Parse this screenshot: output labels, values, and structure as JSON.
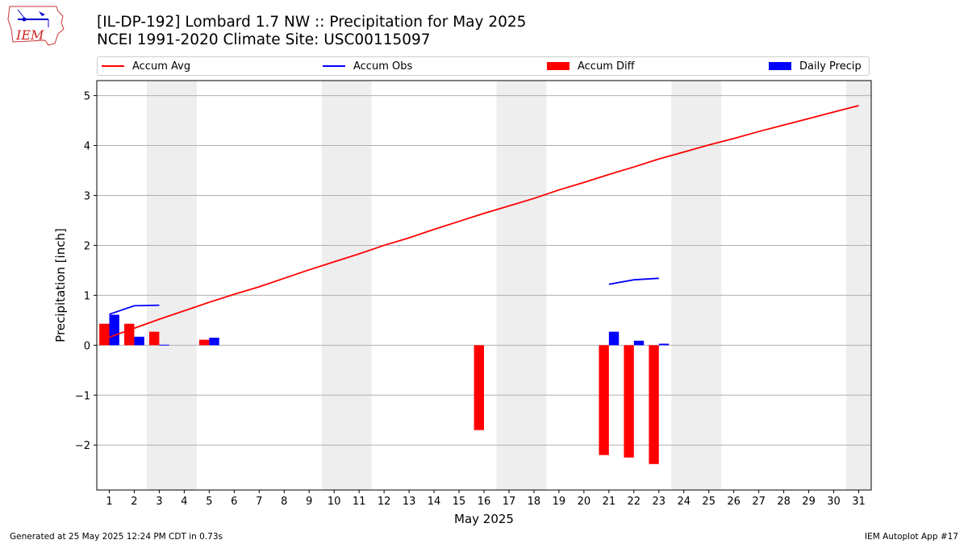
{
  "header": {
    "title_line1": "[IL-DP-192] Lombard 1.7 NW :: Precipitation for May 2025",
    "title_line2": "NCEI 1991-2020 Climate Site: USC00115097",
    "logo_text": "IEM"
  },
  "legend": {
    "items": [
      {
        "label": "Accum Avg",
        "kind": "line",
        "color": "#ff0000"
      },
      {
        "label": "Accum Obs",
        "kind": "line",
        "color": "#0000ff"
      },
      {
        "label": "Accum Diff",
        "kind": "bar",
        "color": "#ff0000"
      },
      {
        "label": "Daily Precip",
        "kind": "bar",
        "color": "#0000ff"
      }
    ]
  },
  "chart_data": {
    "type": "bar",
    "xlabel": "May 2025",
    "ylabel": "Precipitation [inch]",
    "xlim": [
      0.5,
      31.5
    ],
    "ylim": [
      -2.9,
      5.3
    ],
    "yticks": [
      -2,
      -1,
      0,
      1,
      2,
      3,
      4,
      5
    ],
    "ytick_labels": [
      "−2",
      "−1",
      "0",
      "1",
      "2",
      "3",
      "4",
      "5"
    ],
    "xticks": [
      1,
      2,
      3,
      4,
      5,
      6,
      7,
      8,
      9,
      10,
      11,
      12,
      13,
      14,
      15,
      16,
      17,
      18,
      19,
      20,
      21,
      22,
      23,
      24,
      25,
      26,
      27,
      28,
      29,
      30,
      31
    ],
    "grid": "y",
    "weekend_shading": [
      [
        2.5,
        4.5
      ],
      [
        9.5,
        11.5
      ],
      [
        16.5,
        18.5
      ],
      [
        23.5,
        25.5
      ],
      [
        30.5,
        31.5
      ]
    ],
    "shading_color": "#eeeeee",
    "series": [
      {
        "name": "Accum Avg",
        "kind": "line",
        "color": "#ff0000",
        "x": [
          1,
          2,
          3,
          4,
          5,
          6,
          7,
          8,
          9,
          10,
          11,
          12,
          13,
          14,
          15,
          16,
          17,
          18,
          19,
          20,
          21,
          22,
          23,
          24,
          25,
          26,
          27,
          28,
          29,
          30,
          31
        ],
        "values": [
          0.16,
          0.34,
          0.52,
          0.69,
          0.86,
          1.02,
          1.17,
          1.34,
          1.51,
          1.67,
          1.83,
          2.0,
          2.15,
          2.32,
          2.48,
          2.64,
          2.79,
          2.94,
          3.11,
          3.26,
          3.42,
          3.57,
          3.73,
          3.87,
          4.01,
          4.14,
          4.28,
          4.41,
          4.54,
          4.67,
          4.8
        ]
      },
      {
        "name": "Accum Obs",
        "kind": "line",
        "color": "#0000ff",
        "segments": [
          {
            "x": [
              1,
              2,
              3
            ],
            "values": [
              0.62,
              0.79,
              0.8
            ]
          },
          {
            "x": [
              21,
              22,
              23
            ],
            "values": [
              1.22,
              1.31,
              1.34
            ]
          }
        ]
      },
      {
        "name": "Accum Diff",
        "kind": "bar",
        "color": "#ff0000",
        "x": [
          1,
          2,
          3,
          5,
          16,
          21,
          22,
          23
        ],
        "values": [
          0.43,
          0.43,
          0.27,
          0.11,
          -1.7,
          -2.2,
          -2.25,
          -2.38
        ]
      },
      {
        "name": "Daily Precip",
        "kind": "bar",
        "color": "#0000ff",
        "x": [
          1,
          2,
          3,
          5,
          21,
          22,
          23
        ],
        "values": [
          0.61,
          0.17,
          0.01,
          0.15,
          0.27,
          0.09,
          0.03
        ]
      }
    ]
  },
  "footer": {
    "left": "Generated at 25 May 2025 12:24 PM CDT in 0.73s",
    "right": "IEM Autoplot App #17"
  }
}
